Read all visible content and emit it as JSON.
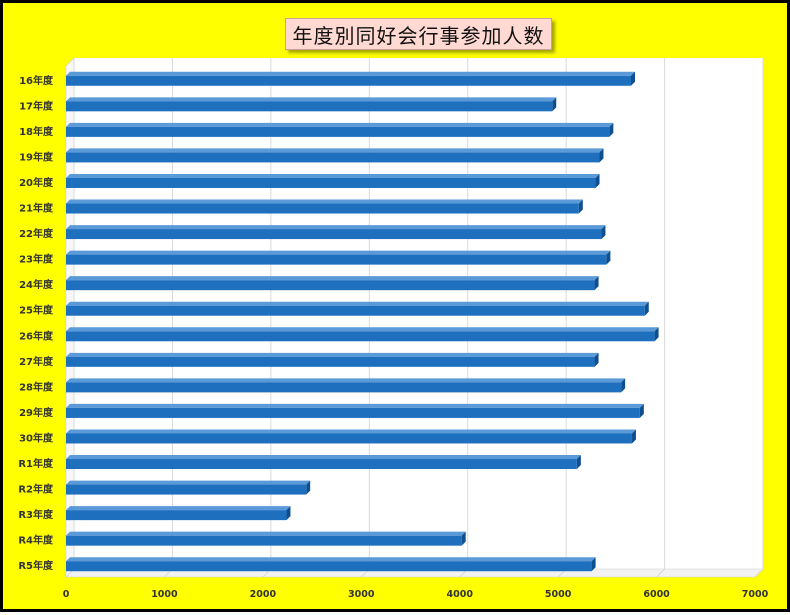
{
  "chart_data": {
    "type": "bar",
    "orientation": "horizontal",
    "title": "年度別同好会行事参加人数",
    "categories": [
      "16年度",
      "17年度",
      "18年度",
      "19年度",
      "20年度",
      "21年度",
      "22年度",
      "23年度",
      "24年度",
      "25年度",
      "26年度",
      "27年度",
      "28年度",
      "29年度",
      "30年度",
      "R1年度",
      "R2年度",
      "R3年度",
      "R4年度",
      "R5年度"
    ],
    "series": [
      {
        "values": [
          5740,
          4940,
          5520,
          5420,
          5380,
          5210,
          5440,
          5490,
          5370,
          5880,
          5980,
          5370,
          5640,
          5830,
          5750,
          5190,
          2440,
          2240,
          4020,
          5340
        ]
      }
    ],
    "xlim": [
      0,
      7000
    ],
    "xticks": [
      0,
      1000,
      2000,
      3000,
      4000,
      5000,
      6000,
      7000
    ],
    "xlabel": "",
    "ylabel": "",
    "grid": true,
    "legend": "none",
    "colors": {
      "bar": "#1f6fbf",
      "bar_top": "#5b9ad8",
      "bar_dark": "#0f4f8f",
      "plot_bg": "#ffffff",
      "page_bg": "#ffff00",
      "grid": "#d9d9d9",
      "title_bg": "#ffd9d2"
    }
  }
}
